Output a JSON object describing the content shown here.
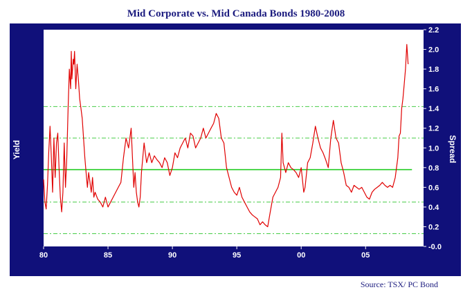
{
  "chart_data": {
    "type": "line",
    "title": "Mid Corporate vs. Mid Canada Bonds 1980-2008",
    "ylabel": "Yield",
    "y2label": "Spread",
    "source": "Source: TSX/ PC Bond",
    "xlim": [
      1980,
      2009.5
    ],
    "ylim": [
      0.0,
      2.2
    ],
    "x_tick_labels": [
      "80",
      "85",
      "90",
      "95",
      "00",
      "05"
    ],
    "x_tick_values": [
      1980,
      1985,
      1990,
      1995,
      2000,
      2005
    ],
    "y_tick_labels": [
      "-0.0",
      "0.2",
      "0.4",
      "0.6",
      "0.8",
      "1.0",
      "1.2",
      "1.4",
      "1.6",
      "1.8",
      "2.0",
      "2.2"
    ],
    "y_tick_values": [
      0.0,
      0.2,
      0.4,
      0.6,
      0.8,
      1.0,
      1.2,
      1.4,
      1.6,
      1.8,
      2.0,
      2.2
    ],
    "reference_lines": {
      "mean": 0.78,
      "upper_1sd": 1.1,
      "lower_1sd": 0.45,
      "upper_2sd": 1.42,
      "lower_2sd": 0.13
    },
    "colors": {
      "frame": "#10107a",
      "plot_background": "#ffffff",
      "series": "#e00000",
      "mean_line": "#22cc22",
      "band_lines": "#44cc44",
      "title": "#1a1a7e"
    },
    "series": [
      {
        "values": [
          [
            1980.0,
            0.68
          ],
          [
            1980.1,
            0.45
          ],
          [
            1980.2,
            0.38
          ],
          [
            1980.3,
            0.62
          ],
          [
            1980.4,
            0.95
          ],
          [
            1980.5,
            1.22
          ],
          [
            1980.6,
            0.9
          ],
          [
            1980.7,
            0.55
          ],
          [
            1980.8,
            1.1
          ],
          [
            1980.9,
            0.7
          ],
          [
            1981.0,
            1.05
          ],
          [
            1981.1,
            1.15
          ],
          [
            1981.2,
            0.8
          ],
          [
            1981.3,
            0.5
          ],
          [
            1981.4,
            0.35
          ],
          [
            1981.5,
            0.55
          ],
          [
            1981.6,
            1.05
          ],
          [
            1981.7,
            0.6
          ],
          [
            1981.8,
            0.9
          ],
          [
            1981.9,
            1.4
          ],
          [
            1982.0,
            1.8
          ],
          [
            1982.1,
            1.6
          ],
          [
            1982.15,
            1.98
          ],
          [
            1982.2,
            1.7
          ],
          [
            1982.3,
            1.9
          ],
          [
            1982.35,
            1.85
          ],
          [
            1982.4,
            1.98
          ],
          [
            1982.5,
            1.6
          ],
          [
            1982.6,
            1.85
          ],
          [
            1982.7,
            1.7
          ],
          [
            1982.8,
            1.5
          ],
          [
            1982.9,
            1.4
          ],
          [
            1983.0,
            1.3
          ],
          [
            1983.1,
            1.1
          ],
          [
            1983.2,
            0.9
          ],
          [
            1983.3,
            0.75
          ],
          [
            1983.4,
            0.6
          ],
          [
            1983.5,
            0.75
          ],
          [
            1983.6,
            0.65
          ],
          [
            1983.7,
            0.55
          ],
          [
            1983.8,
            0.7
          ],
          [
            1983.9,
            0.5
          ],
          [
            1984.0,
            0.55
          ],
          [
            1984.2,
            0.48
          ],
          [
            1984.4,
            0.45
          ],
          [
            1984.6,
            0.4
          ],
          [
            1984.8,
            0.5
          ],
          [
            1985.0,
            0.4
          ],
          [
            1985.2,
            0.45
          ],
          [
            1985.4,
            0.5
          ],
          [
            1985.6,
            0.55
          ],
          [
            1985.8,
            0.6
          ],
          [
            1986.0,
            0.65
          ],
          [
            1986.2,
            0.9
          ],
          [
            1986.4,
            1.1
          ],
          [
            1986.6,
            1.0
          ],
          [
            1986.8,
            1.2
          ],
          [
            1986.9,
            0.9
          ],
          [
            1987.0,
            0.6
          ],
          [
            1987.1,
            0.75
          ],
          [
            1987.2,
            0.55
          ],
          [
            1987.3,
            0.45
          ],
          [
            1987.4,
            0.4
          ],
          [
            1987.5,
            0.5
          ],
          [
            1987.6,
            0.75
          ],
          [
            1987.7,
            0.9
          ],
          [
            1987.8,
            1.05
          ],
          [
            1987.9,
            0.95
          ],
          [
            1988.0,
            0.85
          ],
          [
            1988.2,
            0.95
          ],
          [
            1988.4,
            0.85
          ],
          [
            1988.6,
            0.92
          ],
          [
            1988.8,
            0.88
          ],
          [
            1989.0,
            0.85
          ],
          [
            1989.2,
            0.8
          ],
          [
            1989.4,
            0.9
          ],
          [
            1989.6,
            0.85
          ],
          [
            1989.8,
            0.72
          ],
          [
            1990.0,
            0.8
          ],
          [
            1990.2,
            0.95
          ],
          [
            1990.4,
            0.9
          ],
          [
            1990.6,
            1.0
          ],
          [
            1990.8,
            1.05
          ],
          [
            1991.0,
            1.1
          ],
          [
            1991.2,
            1.0
          ],
          [
            1991.4,
            1.15
          ],
          [
            1991.6,
            1.12
          ],
          [
            1991.8,
            1.0
          ],
          [
            1992.0,
            1.05
          ],
          [
            1992.2,
            1.1
          ],
          [
            1992.4,
            1.2
          ],
          [
            1992.6,
            1.1
          ],
          [
            1992.8,
            1.15
          ],
          [
            1993.0,
            1.2
          ],
          [
            1993.2,
            1.25
          ],
          [
            1993.4,
            1.35
          ],
          [
            1993.6,
            1.3
          ],
          [
            1993.8,
            1.1
          ],
          [
            1994.0,
            1.05
          ],
          [
            1994.2,
            0.8
          ],
          [
            1994.4,
            0.7
          ],
          [
            1994.6,
            0.6
          ],
          [
            1994.8,
            0.55
          ],
          [
            1995.0,
            0.52
          ],
          [
            1995.2,
            0.6
          ],
          [
            1995.4,
            0.5
          ],
          [
            1995.6,
            0.45
          ],
          [
            1995.8,
            0.4
          ],
          [
            1996.0,
            0.35
          ],
          [
            1996.2,
            0.32
          ],
          [
            1996.4,
            0.3
          ],
          [
            1996.6,
            0.28
          ],
          [
            1996.8,
            0.22
          ],
          [
            1997.0,
            0.25
          ],
          [
            1997.2,
            0.22
          ],
          [
            1997.4,
            0.2
          ],
          [
            1997.6,
            0.35
          ],
          [
            1997.8,
            0.5
          ],
          [
            1998.0,
            0.55
          ],
          [
            1998.2,
            0.6
          ],
          [
            1998.4,
            0.7
          ],
          [
            1998.5,
            1.15
          ],
          [
            1998.6,
            0.85
          ],
          [
            1998.8,
            0.75
          ],
          [
            1999.0,
            0.85
          ],
          [
            1999.2,
            0.8
          ],
          [
            1999.4,
            0.78
          ],
          [
            1999.6,
            0.75
          ],
          [
            1999.8,
            0.7
          ],
          [
            2000.0,
            0.8
          ],
          [
            2000.2,
            0.55
          ],
          [
            2000.3,
            0.6
          ],
          [
            2000.5,
            0.85
          ],
          [
            2000.7,
            0.9
          ],
          [
            2000.9,
            1.05
          ],
          [
            2001.1,
            1.22
          ],
          [
            2001.3,
            1.1
          ],
          [
            2001.5,
            1.0
          ],
          [
            2001.7,
            0.95
          ],
          [
            2001.9,
            0.88
          ],
          [
            2002.1,
            0.8
          ],
          [
            2002.3,
            1.1
          ],
          [
            2002.5,
            1.28
          ],
          [
            2002.7,
            1.1
          ],
          [
            2002.9,
            1.05
          ],
          [
            2003.1,
            0.85
          ],
          [
            2003.3,
            0.75
          ],
          [
            2003.5,
            0.62
          ],
          [
            2003.7,
            0.6
          ],
          [
            2003.9,
            0.55
          ],
          [
            2004.1,
            0.62
          ],
          [
            2004.3,
            0.6
          ],
          [
            2004.5,
            0.58
          ],
          [
            2004.7,
            0.6
          ],
          [
            2004.9,
            0.55
          ],
          [
            2005.1,
            0.5
          ],
          [
            2005.3,
            0.48
          ],
          [
            2005.5,
            0.55
          ],
          [
            2005.7,
            0.58
          ],
          [
            2005.9,
            0.6
          ],
          [
            2006.1,
            0.62
          ],
          [
            2006.3,
            0.65
          ],
          [
            2006.5,
            0.62
          ],
          [
            2006.7,
            0.6
          ],
          [
            2006.9,
            0.62
          ],
          [
            2007.1,
            0.6
          ],
          [
            2007.3,
            0.7
          ],
          [
            2007.5,
            0.9
          ],
          [
            2007.6,
            1.12
          ],
          [
            2007.7,
            1.15
          ],
          [
            2007.8,
            1.4
          ],
          [
            2007.9,
            1.5
          ],
          [
            2008.0,
            1.65
          ],
          [
            2008.1,
            1.8
          ],
          [
            2008.2,
            2.05
          ],
          [
            2008.3,
            1.85
          ]
        ]
      }
    ]
  }
}
